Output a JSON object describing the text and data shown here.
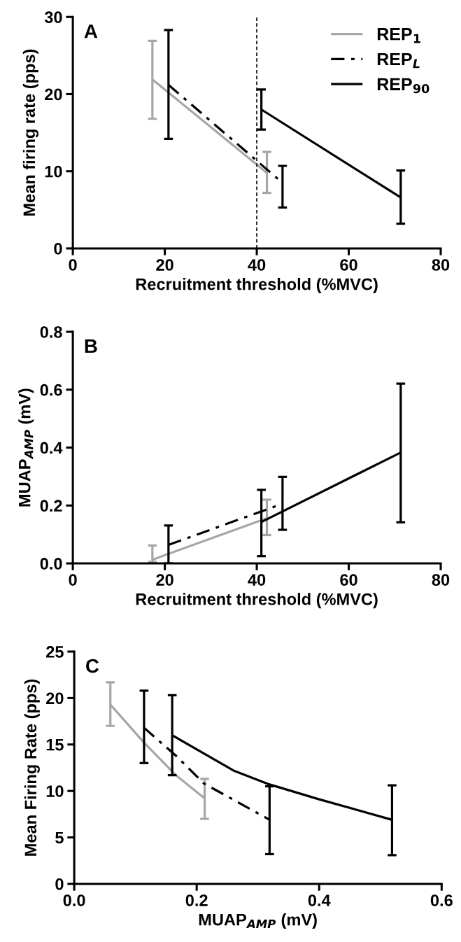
{
  "chart_data": [
    {
      "type": "line",
      "title": "A",
      "xlabel": "Recruitment threshold (%MVC)",
      "ylabel": "Mean firing rate (pps)",
      "xlim": [
        0,
        80
      ],
      "xticks": [
        0,
        20,
        40,
        60,
        80
      ],
      "ylim": [
        0,
        30
      ],
      "yticks": [
        0,
        10,
        20,
        30
      ],
      "legend": "top right",
      "grid": false,
      "marker": "none",
      "ref_lines": [
        {
          "axis": "x",
          "value": 40,
          "color": "#000000",
          "line_style": "dashed"
        }
      ],
      "series": [
        {
          "name": "REP$_{1}$",
          "color": "#a6a6a6",
          "line_style": "solid",
          "x": [
            17.3,
            42.2
          ],
          "values": [
            21.9,
            9.8
          ],
          "errors": [
            [
              16.8,
              26.9
            ],
            [
              7.2,
              12.5
            ]
          ]
        },
        {
          "name": "REP$_{L}$",
          "color": "#000000",
          "line_style": "dashdot",
          "x": [
            20.8,
            45.6
          ],
          "values": [
            21.2,
            8.5
          ],
          "errors": [
            [
              14.2,
              28.3
            ],
            [
              5.3,
              10.7
            ]
          ]
        },
        {
          "name": "REP$_{90}$",
          "color": "#000000",
          "line_style": "solid",
          "x": [
            41.0,
            71.3
          ],
          "values": [
            18.0,
            6.6
          ],
          "errors": [
            [
              15.4,
              20.6
            ],
            [
              3.2,
              10.1
            ]
          ]
        }
      ]
    },
    {
      "type": "line",
      "title": "B",
      "xlabel": "Recruitment threshold (%MVC)",
      "ylabel": "MUAP$_{AMP}$ (mV)",
      "xlim": [
        0,
        80
      ],
      "xticks": [
        0,
        20,
        40,
        60,
        80
      ],
      "ylim": [
        0,
        0.8
      ],
      "yticks": [
        {
          "value": 0,
          "label": "0.0"
        },
        0.2,
        0.4,
        0.6,
        0.8
      ],
      "grid": false,
      "marker": "none",
      "series": [
        {
          "color": "#a6a6a6",
          "line_style": "solid",
          "x": [
            17.3,
            42.2
          ],
          "values": [
            0.013,
            0.156
          ],
          "errors": [
            [
              0.005,
              0.062
            ],
            [
              0.098,
              0.22
            ]
          ]
        },
        {
          "color": "#000000",
          "line_style": "dashdot",
          "x": [
            20.8,
            45.6
          ],
          "values": [
            0.064,
            0.206
          ],
          "errors": [
            [
              0.0,
              0.131
            ],
            [
              0.116,
              0.299
            ]
          ]
        },
        {
          "color": "#000000",
          "line_style": "solid",
          "x": [
            41.0,
            71.3
          ],
          "values": [
            0.143,
            0.383
          ],
          "errors": [
            [
              0.025,
              0.254
            ],
            [
              0.142,
              0.621
            ]
          ]
        }
      ]
    },
    {
      "type": "line",
      "title": "C",
      "xlabel": "MUAP$_{AMP}$ (mV)",
      "ylabel": "Mean Firing Rate (pps)",
      "xlim": [
        0,
        0.6
      ],
      "xticks": [
        {
          "value": 0,
          "label": "0.0"
        },
        0.2,
        0.4,
        0.6
      ],
      "ylim": [
        0,
        25
      ],
      "yticks": [
        0,
        5,
        10,
        15,
        20,
        25
      ],
      "grid": false,
      "marker": "none",
      "series": [
        {
          "color": "#a6a6a6",
          "line_style": "solid",
          "x": [
            0.059,
            0.114,
            0.166,
            0.213
          ],
          "values": [
            19.3,
            15.2,
            11.7,
            9.2
          ],
          "errors": [
            [
              17.0,
              21.7
            ],
            null,
            null,
            [
              7.0,
              11.3
            ]
          ]
        },
        {
          "color": "#000000",
          "line_style": "dashdot",
          "x": [
            0.114,
            0.166,
            0.212,
            0.319
          ],
          "values": [
            16.8,
            13.8,
            10.8,
            6.9
          ],
          "errors": [
            [
              13.0,
              20.8
            ],
            null,
            null,
            [
              3.2,
              10.5
            ]
          ]
        },
        {
          "color": "#000000",
          "line_style": "solid",
          "x": [
            0.16,
            0.26,
            0.319,
            0.4,
            0.519
          ],
          "values": [
            16.0,
            12.2,
            10.7,
            9.1,
            6.9
          ],
          "errors": [
            [
              11.7,
              20.3
            ],
            null,
            null,
            null,
            [
              3.1,
              10.6
            ]
          ]
        }
      ]
    }
  ]
}
